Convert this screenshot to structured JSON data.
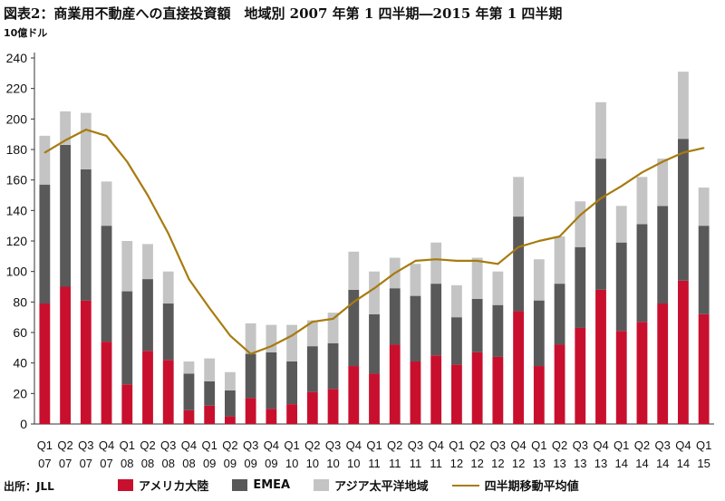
{
  "chart_data": {
    "type": "bar",
    "stacked": true,
    "title": "図表2：商業用不動産への直接投資額　地域別 2007 年第 1 四半期―2015 年第 1 四半期",
    "ylabel": "10億ドル",
    "ylim": [
      0,
      240
    ],
    "yticks": [
      0,
      20,
      40,
      60,
      80,
      100,
      120,
      140,
      160,
      180,
      200,
      220,
      240
    ],
    "grid": false,
    "legend": "bottom",
    "categories": [
      [
        "Q1",
        "07"
      ],
      [
        "Q2",
        "07"
      ],
      [
        "Q3",
        "07"
      ],
      [
        "Q4",
        "07"
      ],
      [
        "Q1",
        "08"
      ],
      [
        "Q2",
        "08"
      ],
      [
        "Q3",
        "08"
      ],
      [
        "Q4",
        "08"
      ],
      [
        "Q1",
        "09"
      ],
      [
        "Q2",
        "09"
      ],
      [
        "Q3",
        "09"
      ],
      [
        "Q4",
        "09"
      ],
      [
        "Q1",
        "10"
      ],
      [
        "Q2",
        "10"
      ],
      [
        "Q3",
        "10"
      ],
      [
        "Q4",
        "10"
      ],
      [
        "Q1",
        "11"
      ],
      [
        "Q2",
        "11"
      ],
      [
        "Q3",
        "11"
      ],
      [
        "Q4",
        "11"
      ],
      [
        "Q1",
        "12"
      ],
      [
        "Q2",
        "12"
      ],
      [
        "Q3",
        "12"
      ],
      [
        "Q4",
        "12"
      ],
      [
        "Q1",
        "13"
      ],
      [
        "Q2",
        "13"
      ],
      [
        "Q3",
        "13"
      ],
      [
        "Q4",
        "13"
      ],
      [
        "Q1",
        "14"
      ],
      [
        "Q2",
        "14"
      ],
      [
        "Q3",
        "14"
      ],
      [
        "Q4",
        "14"
      ],
      [
        "Q1",
        "15"
      ]
    ],
    "series": [
      {
        "name": "アメリカ大陸",
        "color": "#c8102e",
        "values": [
          79,
          90,
          81,
          54,
          26,
          48,
          42,
          9,
          12,
          5,
          17,
          10,
          13,
          21,
          23,
          38,
          33,
          52,
          41,
          45,
          39,
          47,
          44,
          74,
          38,
          52,
          63,
          88,
          61,
          67,
          79,
          94,
          72
        ]
      },
      {
        "name": "EMEA",
        "color": "#595959",
        "values": [
          78,
          93,
          86,
          76,
          61,
          47,
          37,
          24,
          16,
          17,
          29,
          37,
          28,
          30,
          30,
          50,
          39,
          37,
          43,
          47,
          31,
          35,
          34,
          62,
          43,
          40,
          53,
          86,
          58,
          64,
          64,
          93,
          58
        ]
      },
      {
        "name": "アジア太平洋地域",
        "color": "#c4c4c4",
        "values": [
          32,
          22,
          37,
          29,
          33,
          23,
          21,
          8,
          15,
          12,
          20,
          18,
          24,
          17,
          20,
          25,
          28,
          20,
          21,
          27,
          21,
          27,
          22,
          26,
          27,
          31,
          30,
          37,
          24,
          31,
          31,
          44,
          25
        ]
      }
    ],
    "line": {
      "name": "四半期移動平均値",
      "color": "#a77b0e",
      "values": [
        178,
        186,
        193,
        189,
        172,
        150,
        125,
        95,
        76,
        58,
        46,
        51,
        58,
        67,
        69,
        80,
        89,
        99,
        107,
        108,
        107,
        107,
        105,
        116,
        120,
        123,
        137,
        148,
        156,
        165,
        172,
        178,
        181
      ]
    }
  },
  "source": "出所：JLL"
}
